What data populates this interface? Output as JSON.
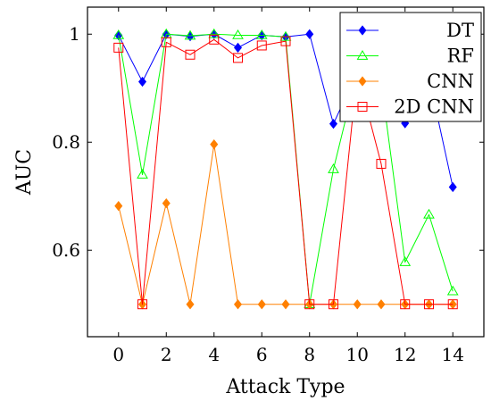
{
  "chart_data": {
    "type": "line",
    "title": "",
    "xlabel": "Attack Type",
    "ylabel": "AUC",
    "xlim": [
      -1.3,
      15.3
    ],
    "ylim": [
      0.44,
      1.05
    ],
    "x_ticks": [
      0,
      2,
      4,
      6,
      8,
      10,
      12,
      14
    ],
    "y_ticks": [
      0.6,
      0.8,
      1
    ],
    "y_tick_labels": [
      "0.6",
      "0.8",
      "1"
    ],
    "grid": false,
    "legend_position": "top-right",
    "x": [
      0,
      1,
      2,
      3,
      4,
      5,
      6,
      7,
      8,
      9,
      10,
      11,
      12,
      13,
      14
    ],
    "series": [
      {
        "name": "DT",
        "color": "#0000ff",
        "marker": "diamond-filled",
        "values": [
          0.998,
          0.912,
          1.0,
          0.996,
          1.0,
          0.975,
          0.998,
          0.995,
          1.0,
          0.834,
          0.93,
          0.91,
          0.835,
          0.92,
          0.717
        ]
      },
      {
        "name": "RF",
        "color": "#00ff00",
        "marker": "triangle-open",
        "values": [
          0.998,
          0.74,
          1.0,
          0.997,
          1.0,
          0.998,
          0.998,
          0.995,
          0.5,
          0.75,
          0.93,
          0.91,
          0.578,
          0.666,
          0.524
        ]
      },
      {
        "name": "CNN",
        "color": "#ff8000",
        "marker": "diamond-filled",
        "values": [
          0.682,
          0.5,
          0.687,
          0.5,
          0.796,
          0.5,
          0.5,
          0.5,
          0.5,
          0.5,
          0.5,
          0.5,
          0.5,
          0.5,
          0.5
        ]
      },
      {
        "name": "2D CNN",
        "color": "#ff0000",
        "marker": "square-open",
        "values": [
          0.975,
          0.5,
          0.985,
          0.962,
          0.99,
          0.956,
          0.979,
          0.987,
          0.5,
          0.5,
          0.93,
          0.76,
          0.5,
          0.5,
          0.5
        ]
      }
    ]
  }
}
